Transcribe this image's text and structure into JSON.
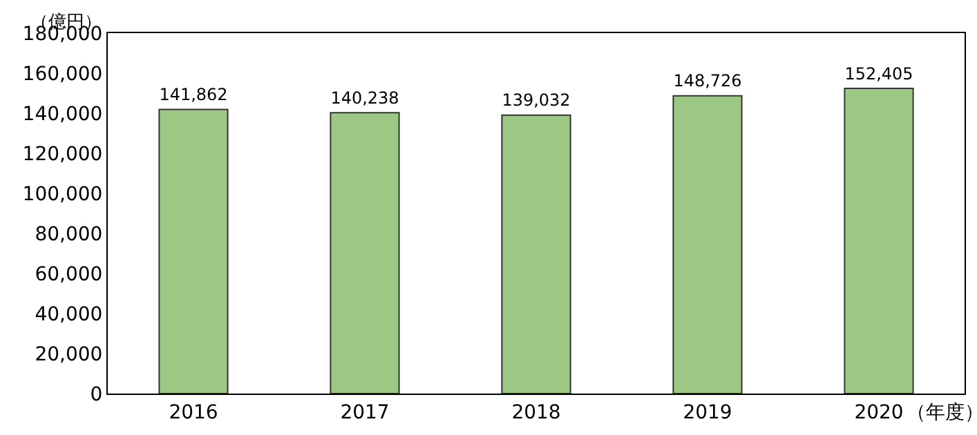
{
  "chart_data": {
    "type": "bar",
    "xlabel": "（年度）",
    "ylabel": "（億円）",
    "categories": [
      "2016",
      "2017",
      "2018",
      "2019",
      "2020"
    ],
    "values": [
      141862,
      140238,
      139032,
      148726,
      152405
    ],
    "color": "#9dc884",
    "ylim": [
      0,
      180000
    ],
    "yticks": [
      0,
      {
        "value": 20000,
        "label": "20,000"
      },
      {
        "value": 40000,
        "label": "40,000"
      },
      {
        "value": 60000,
        "label": "60,000"
      },
      {
        "value": 80000,
        "label": "80,000"
      },
      {
        "value": 100000,
        "label": "100,000"
      },
      {
        "value": 120000,
        "label": "120,000"
      },
      {
        "value": 140000,
        "label": "140,000"
      },
      {
        "value": 160000,
        "label": "160,000"
      },
      {
        "value": 180000,
        "label": "180,000"
      }
    ],
    "value_labels": [
      "141,862",
      "140,238",
      "139,032",
      "148,726",
      "152,405"
    ]
  }
}
